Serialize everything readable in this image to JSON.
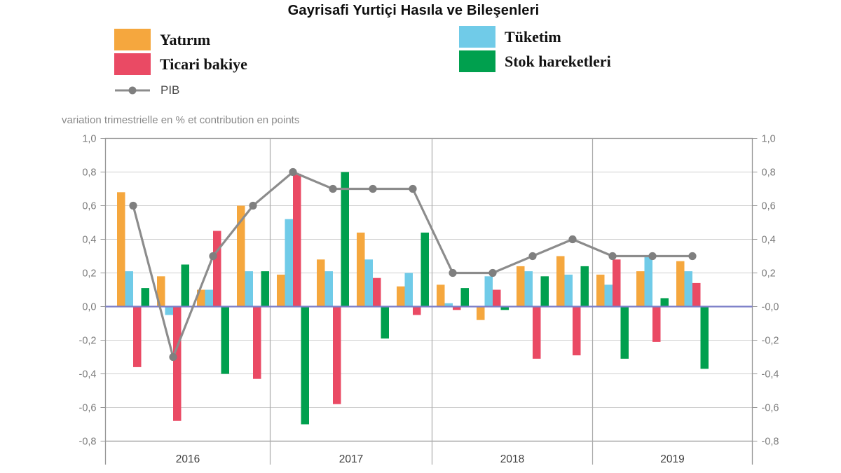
{
  "header": {
    "title": "Gayrisafi Yurtiçi Hasıla ve Bileşenleri"
  },
  "legend": {
    "col1": [
      {
        "label": "Yatırım",
        "color": "#F5A73E",
        "marker": "swatch"
      },
      {
        "label": "Ticari bakiye",
        "color": "#EA4A64",
        "marker": "swatch"
      },
      {
        "label": "PIB",
        "color": "#8C8C8C",
        "dot_color": "#7F7F7F",
        "marker": "line-dot"
      }
    ],
    "col2": [
      {
        "label": "Tüketim",
        "color": "#70CBE8",
        "marker": "swatch"
      },
      {
        "label": "Stok hareketleri",
        "color": "#00A04E",
        "marker": "swatch"
      }
    ]
  },
  "chart_data": {
    "type": "bar",
    "subtitle": "variation trimestrielle en % et contribution en points",
    "title": "Gayrisafi Yurtiçi Hasıla ve Bileşenleri",
    "categories": [
      "2016 Q1",
      "2016 Q2",
      "2016 Q3",
      "2016 Q4",
      "2017 Q1",
      "2017 Q2",
      "2017 Q3",
      "2017 Q4",
      "2018 Q1",
      "2018 Q2",
      "2018 Q3",
      "2018 Q4",
      "2019 Q1",
      "2019 Q2",
      "2019 Q3"
    ],
    "x_year_labels": [
      "2016",
      "2017",
      "2018",
      "2019"
    ],
    "quarters_per_year": [
      4,
      4,
      4,
      3
    ],
    "bar_series": [
      {
        "name": "Yatırım",
        "color": "#F5A73E",
        "values": [
          0.68,
          0.18,
          0.1,
          0.6,
          0.19,
          0.28,
          0.44,
          0.12,
          0.13,
          -0.08,
          0.24,
          0.3,
          0.19,
          0.21,
          0.27
        ]
      },
      {
        "name": "Tüketim",
        "color": "#70CBE8",
        "values": [
          0.21,
          -0.05,
          0.1,
          0.21,
          0.52,
          0.21,
          0.28,
          0.2,
          0.02,
          0.18,
          0.21,
          0.19,
          0.13,
          0.3,
          0.21
        ]
      },
      {
        "name": "Ticari bakiye",
        "color": "#EA4A64",
        "values": [
          -0.36,
          -0.68,
          0.45,
          -0.43,
          0.79,
          -0.58,
          0.17,
          -0.05,
          -0.02,
          0.1,
          -0.31,
          -0.29,
          0.28,
          -0.21,
          0.14
        ]
      },
      {
        "name": "Stok hareketleri",
        "color": "#00A04E",
        "values": [
          0.11,
          0.25,
          -0.4,
          0.21,
          -0.7,
          0.8,
          -0.19,
          0.44,
          0.11,
          -0.02,
          0.18,
          0.24,
          -0.31,
          0.05,
          -0.37
        ]
      }
    ],
    "line_series": {
      "name": "PIB",
      "color": "#8C8C8C",
      "dot_color": "#7F7F7F",
      "values": [
        0.6,
        -0.3,
        0.3,
        0.6,
        0.8,
        0.7,
        0.7,
        0.7,
        0.2,
        0.2,
        0.3,
        0.4,
        0.3,
        0.3,
        0.3
      ]
    },
    "ylim": [
      -0.8,
      1.0
    ],
    "ytick_values": [
      1.0,
      0.8,
      0.6,
      0.4,
      0.2,
      0.0,
      -0.2,
      -0.4,
      -0.6,
      -0.8
    ],
    "ytick_labels_left": [
      "1,0",
      "0,8",
      "0,6",
      "0,4",
      "0,2",
      "0,0",
      "-0,2",
      "-0,4",
      "-0,6",
      "-0,8"
    ],
    "ytick_labels_right": [
      "1,0",
      "0,8",
      "0,6",
      "0,4",
      "0,2",
      "-0,0",
      "-0,2",
      "-0,4",
      "-0,6",
      "-0,8"
    ],
    "zero_line_color": "#7B7EC8",
    "grid_color": "#CFCFCF",
    "border_color": "#969696",
    "tick_text_color": "#7B7B7B",
    "year_text_color": "#3F3F3F",
    "grid": true,
    "legend_position": "top"
  }
}
